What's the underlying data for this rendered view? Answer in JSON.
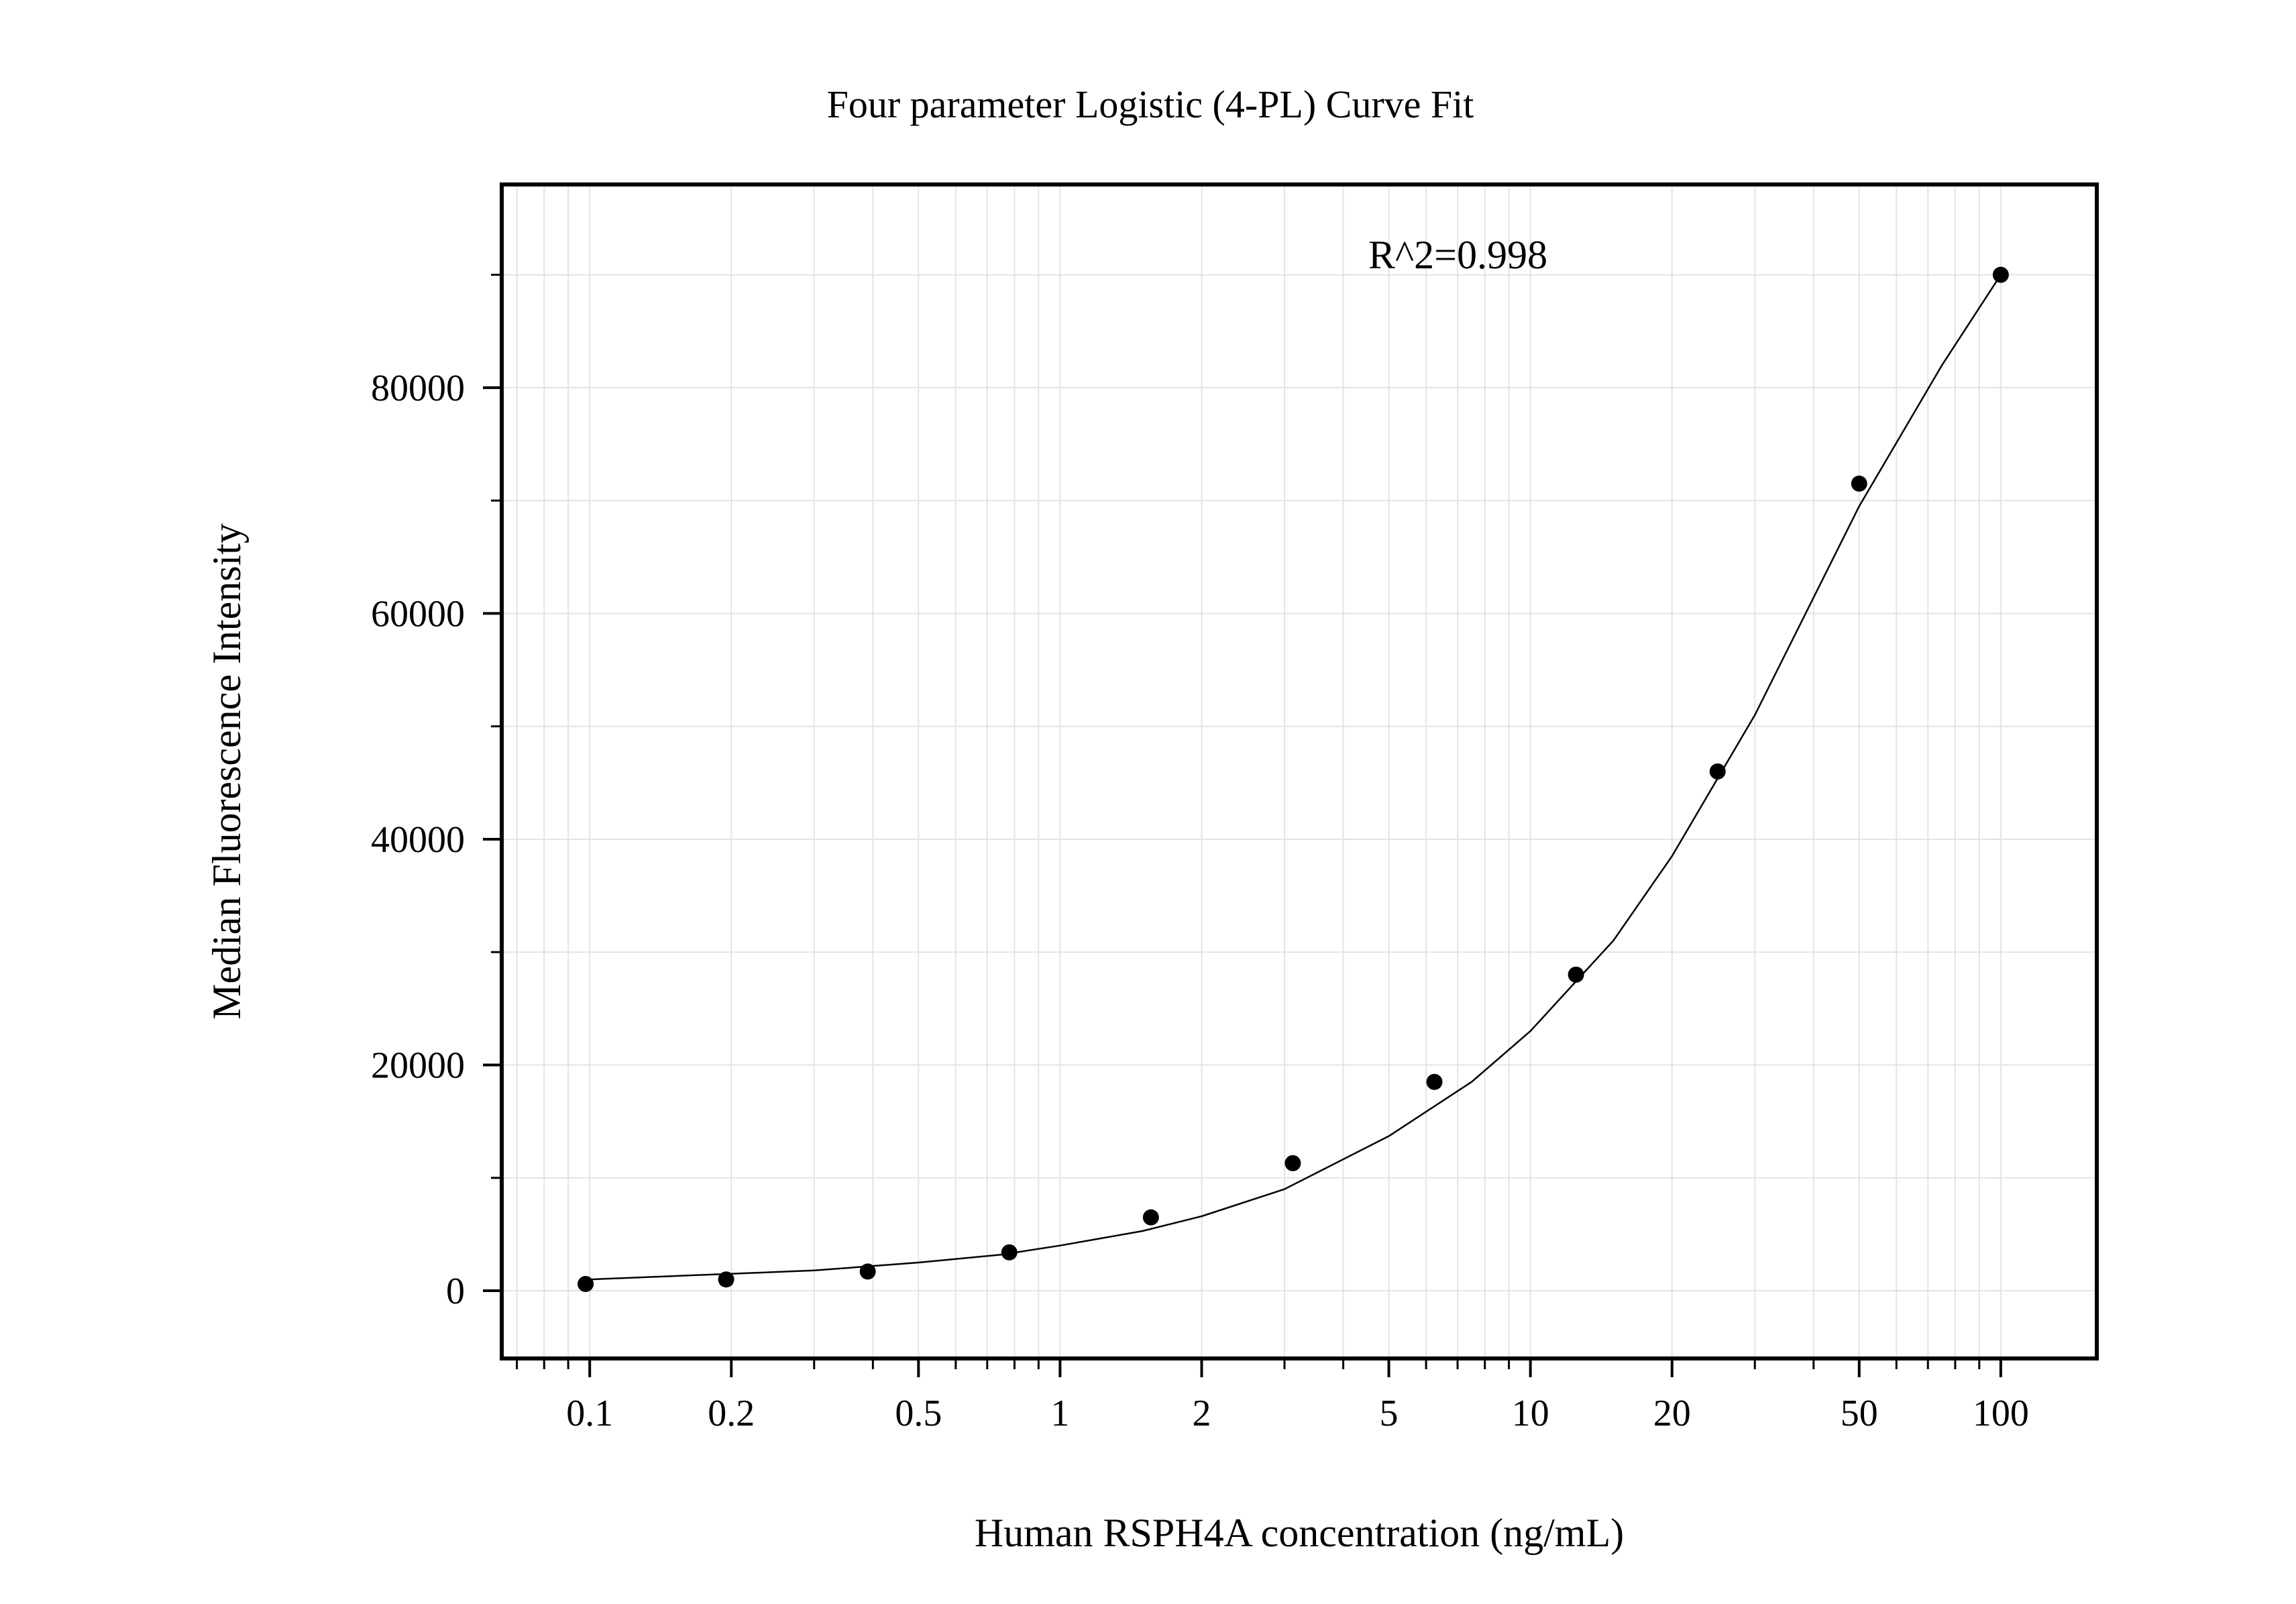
{
  "chart_data": {
    "type": "scatter",
    "title": "Four parameter Logistic (4-PL) Curve Fit",
    "xlabel": "Human RSPH4A concentration (ng/mL)",
    "ylabel": "Median Fluorescence Intensity",
    "x_scale": "log",
    "xlim": [
      0.065,
      160
    ],
    "ylim": [
      -6000,
      98000
    ],
    "grid": true,
    "x_ticks": [
      0.1,
      0.2,
      0.5,
      1,
      2,
      5,
      10,
      20,
      50,
      100
    ],
    "x_tick_labels": [
      "0.1",
      "0.2",
      "0.5",
      "1",
      "2",
      "5",
      "10",
      "20",
      "50",
      "100"
    ],
    "y_ticks": [
      0,
      20000,
      40000,
      60000,
      80000
    ],
    "y_tick_labels": [
      "0",
      "20000",
      "40000",
      "60000",
      "80000"
    ],
    "annotation": "R^2=0.998",
    "series": [
      {
        "type": "scatter",
        "x": [
          0.098,
          0.195,
          0.39,
          0.78,
          1.56,
          3.125,
          6.25,
          12.5,
          25,
          50,
          100
        ],
        "y": [
          600,
          1000,
          1700,
          3400,
          6500,
          11300,
          18500,
          28000,
          46000,
          71500,
          90000
        ]
      },
      {
        "type": "line",
        "x": [
          0.1,
          0.15,
          0.2,
          0.3,
          0.5,
          0.75,
          1,
          1.5,
          2,
          3,
          5,
          7.5,
          10,
          15,
          20,
          30,
          50,
          75,
          100
        ],
        "y": [
          1000,
          1300,
          1500,
          1800,
          2500,
          3200,
          4000,
          5300,
          6600,
          9000,
          13700,
          18500,
          23000,
          31000,
          38500,
          51000,
          69500,
          82000,
          90000
        ]
      }
    ]
  }
}
